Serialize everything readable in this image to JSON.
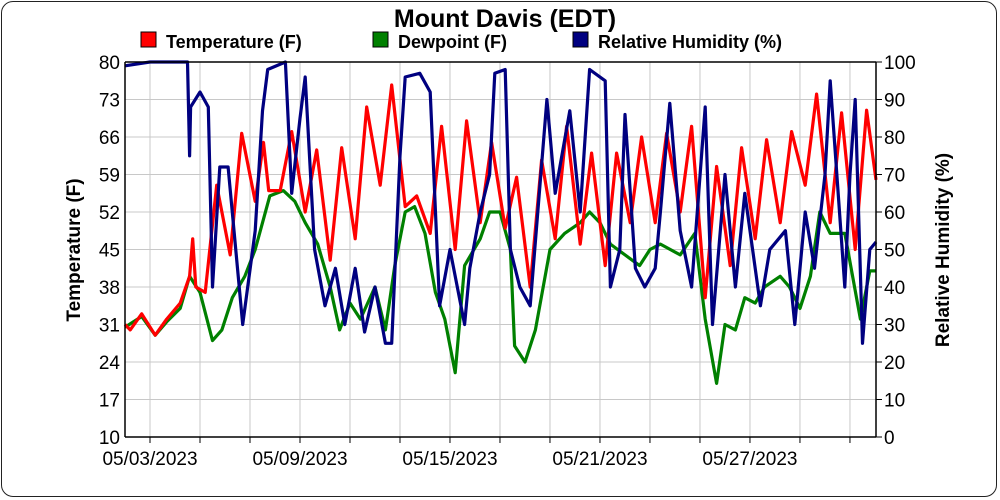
{
  "chart_data": {
    "type": "line",
    "title": "Mount Davis (EDT)",
    "xlabel": "",
    "ylabel": "Temperature (F)",
    "y2label": "Relative Humidity (%)",
    "xlim": [
      "2023-05-02T00:00",
      "2023-06-01T01:00"
    ],
    "ylim": [
      10,
      80
    ],
    "y2lim": [
      0,
      100
    ],
    "yticks": [
      10,
      17,
      24,
      31,
      38,
      45,
      52,
      59,
      66,
      73,
      80
    ],
    "y2ticks": [
      0,
      10,
      20,
      30,
      40,
      50,
      60,
      70,
      80,
      90,
      100
    ],
    "xtick_labels": [
      "05/03/2023",
      "05/09/2023",
      "05/15/2023",
      "05/21/2023",
      "05/27/2023"
    ],
    "xtick_label_dates": [
      "2023-05-03T00:00",
      "2023-05-09T00:00",
      "2023-05-15T00:00",
      "2023-05-21T00:00",
      "2023-05-27T00:00"
    ],
    "xtick_minor_interval_days": 2,
    "grid": true,
    "legend_placement": "top",
    "series": [
      {
        "name": "Temperature (F)",
        "color": "#ff0000",
        "axis": "left",
        "points": [
          [
            "2023-05-02T00:00",
            31
          ],
          [
            "2023-05-02T05:00",
            30
          ],
          [
            "2023-05-02T16:00",
            33
          ],
          [
            "2023-05-03T05:00",
            29
          ],
          [
            "2023-05-03T16:00",
            32
          ],
          [
            "2023-05-04T05:00",
            35
          ],
          [
            "2023-05-04T14:00",
            40
          ],
          [
            "2023-05-04T17:00",
            47
          ],
          [
            "2023-05-04T20:00",
            38
          ],
          [
            "2023-05-05T05:00",
            37
          ],
          [
            "2023-05-05T16:00",
            57
          ],
          [
            "2023-05-06T05:00",
            44
          ],
          [
            "2023-05-06T16:00",
            66.7
          ],
          [
            "2023-05-07T05:00",
            54
          ],
          [
            "2023-05-07T13:00",
            65
          ],
          [
            "2023-05-07T18:00",
            56
          ],
          [
            "2023-05-08T05:00",
            56
          ],
          [
            "2023-05-08T16:00",
            67
          ],
          [
            "2023-05-09T05:00",
            52
          ],
          [
            "2023-05-09T16:00",
            63.6
          ],
          [
            "2023-05-10T05:00",
            43
          ],
          [
            "2023-05-10T16:00",
            64
          ],
          [
            "2023-05-11T05:00",
            47
          ],
          [
            "2023-05-11T16:00",
            71.6
          ],
          [
            "2023-05-12T05:00",
            57
          ],
          [
            "2023-05-12T16:00",
            75.7
          ],
          [
            "2023-05-13T05:00",
            53
          ],
          [
            "2023-05-13T16:00",
            55
          ],
          [
            "2023-05-14T05:00",
            48
          ],
          [
            "2023-05-14T16:00",
            68
          ],
          [
            "2023-05-15T05:00",
            45
          ],
          [
            "2023-05-15T16:00",
            69
          ],
          [
            "2023-05-16T05:00",
            50
          ],
          [
            "2023-05-16T16:00",
            65
          ],
          [
            "2023-05-17T05:00",
            49
          ],
          [
            "2023-05-17T16:00",
            58.5
          ],
          [
            "2023-05-18T05:00",
            38
          ],
          [
            "2023-05-18T16:00",
            61.7
          ],
          [
            "2023-05-19T05:00",
            47
          ],
          [
            "2023-05-19T16:00",
            68
          ],
          [
            "2023-05-20T05:00",
            46
          ],
          [
            "2023-05-20T16:00",
            63
          ],
          [
            "2023-05-21T05:00",
            42
          ],
          [
            "2023-05-21T16:00",
            63
          ],
          [
            "2023-05-22T05:00",
            50
          ],
          [
            "2023-05-22T16:00",
            66
          ],
          [
            "2023-05-23T05:00",
            50
          ],
          [
            "2023-05-23T16:00",
            66.7
          ],
          [
            "2023-05-24T05:00",
            52
          ],
          [
            "2023-05-24T16:00",
            68
          ],
          [
            "2023-05-25T05:00",
            36
          ],
          [
            "2023-05-25T16:00",
            60.5
          ],
          [
            "2023-05-26T05:00",
            42
          ],
          [
            "2023-05-26T16:00",
            64
          ],
          [
            "2023-05-27T05:00",
            47
          ],
          [
            "2023-05-27T16:00",
            65.5
          ],
          [
            "2023-05-28T05:00",
            50
          ],
          [
            "2023-05-28T16:00",
            67
          ],
          [
            "2023-05-29T05:00",
            57
          ],
          [
            "2023-05-29T16:00",
            74
          ],
          [
            "2023-05-30T05:00",
            50
          ],
          [
            "2023-05-30T16:00",
            70.5
          ],
          [
            "2023-05-31T05:00",
            45
          ],
          [
            "2023-05-31T16:00",
            71
          ],
          [
            "2023-06-01T01:00",
            58
          ]
        ]
      },
      {
        "name": "Dewpoint (F)",
        "color": "#008000",
        "axis": "left",
        "points": [
          [
            "2023-05-02T00:00",
            30.5
          ],
          [
            "2023-05-02T16:00",
            32.5
          ],
          [
            "2023-05-03T05:00",
            29
          ],
          [
            "2023-05-03T16:00",
            31.5
          ],
          [
            "2023-05-04T05:00",
            34
          ],
          [
            "2023-05-04T14:00",
            40
          ],
          [
            "2023-05-05T00:00",
            37
          ],
          [
            "2023-05-05T12:00",
            28
          ],
          [
            "2023-05-05T21:00",
            30
          ],
          [
            "2023-05-06T07:00",
            36
          ],
          [
            "2023-05-06T19:00",
            40
          ],
          [
            "2023-05-07T05:00",
            45
          ],
          [
            "2023-05-07T19:00",
            55
          ],
          [
            "2023-05-08T08:00",
            56
          ],
          [
            "2023-05-08T19:00",
            54
          ],
          [
            "2023-05-09T05:00",
            50
          ],
          [
            "2023-05-09T17:00",
            46
          ],
          [
            "2023-05-10T05:00",
            38
          ],
          [
            "2023-05-10T14:00",
            30
          ],
          [
            "2023-05-11T00:00",
            35
          ],
          [
            "2023-05-11T10:00",
            32
          ],
          [
            "2023-05-12T00:00",
            38
          ],
          [
            "2023-05-12T10:00",
            30
          ],
          [
            "2023-05-12T19:00",
            42
          ],
          [
            "2023-05-13T05:00",
            52
          ],
          [
            "2023-05-13T14:00",
            53
          ],
          [
            "2023-05-14T00:00",
            48
          ],
          [
            "2023-05-14T10:00",
            37
          ],
          [
            "2023-05-14T19:00",
            32
          ],
          [
            "2023-05-15T05:00",
            22
          ],
          [
            "2023-05-15T14:00",
            42
          ],
          [
            "2023-05-16T05:00",
            47
          ],
          [
            "2023-05-16T14:00",
            52
          ],
          [
            "2023-05-17T00:00",
            52
          ],
          [
            "2023-05-17T10:00",
            45
          ],
          [
            "2023-05-17T14:00",
            27
          ],
          [
            "2023-05-18T00:00",
            24
          ],
          [
            "2023-05-18T10:00",
            30
          ],
          [
            "2023-05-19T00:00",
            45
          ],
          [
            "2023-05-19T14:00",
            48
          ],
          [
            "2023-05-20T05:00",
            50
          ],
          [
            "2023-05-20T14:00",
            52
          ],
          [
            "2023-05-21T00:00",
            50
          ],
          [
            "2023-05-21T10:00",
            46
          ],
          [
            "2023-05-22T00:00",
            44
          ],
          [
            "2023-05-22T14:00",
            42
          ],
          [
            "2023-05-23T00:00",
            45
          ],
          [
            "2023-05-23T10:00",
            46
          ],
          [
            "2023-05-24T05:00",
            44
          ],
          [
            "2023-05-24T19:00",
            48
          ],
          [
            "2023-05-25T05:00",
            32
          ],
          [
            "2023-05-25T16:00",
            20
          ],
          [
            "2023-05-26T00:00",
            31
          ],
          [
            "2023-05-26T10:00",
            30
          ],
          [
            "2023-05-26T19:00",
            36
          ],
          [
            "2023-05-27T05:00",
            35
          ],
          [
            "2023-05-27T14:00",
            38
          ],
          [
            "2023-05-28T05:00",
            40
          ],
          [
            "2023-05-28T14:00",
            38
          ],
          [
            "2023-05-29T00:00",
            34
          ],
          [
            "2023-05-29T10:00",
            40
          ],
          [
            "2023-05-29T19:00",
            52
          ],
          [
            "2023-05-30T05:00",
            48
          ],
          [
            "2023-05-30T19:00",
            48
          ],
          [
            "2023-05-31T10:00",
            32
          ],
          [
            "2023-05-31T19:00",
            41
          ],
          [
            "2023-06-01T01:00",
            41
          ]
        ]
      },
      {
        "name": "Relative Humidity (%)",
        "color": "#000080",
        "axis": "right",
        "points": [
          [
            "2023-05-02T00:00",
            99
          ],
          [
            "2023-05-03T00:00",
            100
          ],
          [
            "2023-05-04T12:00",
            100
          ],
          [
            "2023-05-04T14:00",
            75
          ],
          [
            "2023-05-04T15:00",
            88
          ],
          [
            "2023-05-05T00:00",
            92
          ],
          [
            "2023-05-05T08:00",
            88
          ],
          [
            "2023-05-05T12:00",
            40
          ],
          [
            "2023-05-05T19:00",
            72
          ],
          [
            "2023-05-06T03:00",
            72
          ],
          [
            "2023-05-06T17:00",
            30
          ],
          [
            "2023-05-07T05:00",
            55
          ],
          [
            "2023-05-07T12:00",
            87
          ],
          [
            "2023-05-07T17:00",
            98
          ],
          [
            "2023-05-08T10:00",
            100
          ],
          [
            "2023-05-08T16:00",
            65
          ],
          [
            "2023-05-09T00:00",
            85
          ],
          [
            "2023-05-09T05:00",
            96
          ],
          [
            "2023-05-09T14:00",
            50
          ],
          [
            "2023-05-10T00:00",
            35
          ],
          [
            "2023-05-10T10:00",
            45
          ],
          [
            "2023-05-10T19:00",
            30
          ],
          [
            "2023-05-11T05:00",
            45
          ],
          [
            "2023-05-11T14:00",
            28
          ],
          [
            "2023-05-12T00:00",
            40
          ],
          [
            "2023-05-12T10:00",
            25
          ],
          [
            "2023-05-12T16:00",
            25
          ],
          [
            "2023-05-13T00:00",
            75
          ],
          [
            "2023-05-13T05:00",
            96
          ],
          [
            "2023-05-13T19:00",
            97
          ],
          [
            "2023-05-14T05:00",
            92
          ],
          [
            "2023-05-14T14:00",
            35
          ],
          [
            "2023-05-15T00:00",
            50
          ],
          [
            "2023-05-15T14:00",
            30
          ],
          [
            "2023-05-15T19:00",
            45
          ],
          [
            "2023-05-16T05:00",
            60
          ],
          [
            "2023-05-16T14:00",
            70
          ],
          [
            "2023-05-16T19:00",
            97
          ],
          [
            "2023-05-17T05:00",
            98
          ],
          [
            "2023-05-17T10:00",
            50
          ],
          [
            "2023-05-17T19:00",
            40
          ],
          [
            "2023-05-18T05:00",
            35
          ],
          [
            "2023-05-18T21:00",
            90
          ],
          [
            "2023-05-19T05:00",
            65
          ],
          [
            "2023-05-19T19:00",
            87
          ],
          [
            "2023-05-20T05:00",
            60
          ],
          [
            "2023-05-20T14:00",
            98
          ],
          [
            "2023-05-21T05:00",
            95
          ],
          [
            "2023-05-21T10:00",
            40
          ],
          [
            "2023-05-21T19:00",
            50
          ],
          [
            "2023-05-22T00:00",
            86
          ],
          [
            "2023-05-22T10:00",
            45
          ],
          [
            "2023-05-22T19:00",
            40
          ],
          [
            "2023-05-23T05:00",
            45
          ],
          [
            "2023-05-23T10:00",
            60
          ],
          [
            "2023-05-23T19:00",
            89
          ],
          [
            "2023-05-24T05:00",
            55
          ],
          [
            "2023-05-24T16:00",
            40
          ],
          [
            "2023-05-25T05:00",
            88
          ],
          [
            "2023-05-25T12:00",
            30
          ],
          [
            "2023-05-26T00:00",
            70
          ],
          [
            "2023-05-26T10:00",
            40
          ],
          [
            "2023-05-26T19:00",
            65
          ],
          [
            "2023-05-27T10:00",
            35
          ],
          [
            "2023-05-27T19:00",
            50
          ],
          [
            "2023-05-28T10:00",
            55
          ],
          [
            "2023-05-28T19:00",
            30
          ],
          [
            "2023-05-29T05:00",
            60
          ],
          [
            "2023-05-29T14:00",
            45
          ],
          [
            "2023-05-30T00:00",
            70
          ],
          [
            "2023-05-30T05:00",
            95
          ],
          [
            "2023-05-30T14:00",
            60
          ],
          [
            "2023-05-30T19:00",
            40
          ],
          [
            "2023-05-31T00:00",
            70
          ],
          [
            "2023-05-31T05:00",
            90
          ],
          [
            "2023-05-31T12:00",
            25
          ],
          [
            "2023-05-31T19:00",
            50
          ],
          [
            "2023-06-01T01:00",
            52
          ]
        ]
      }
    ]
  }
}
